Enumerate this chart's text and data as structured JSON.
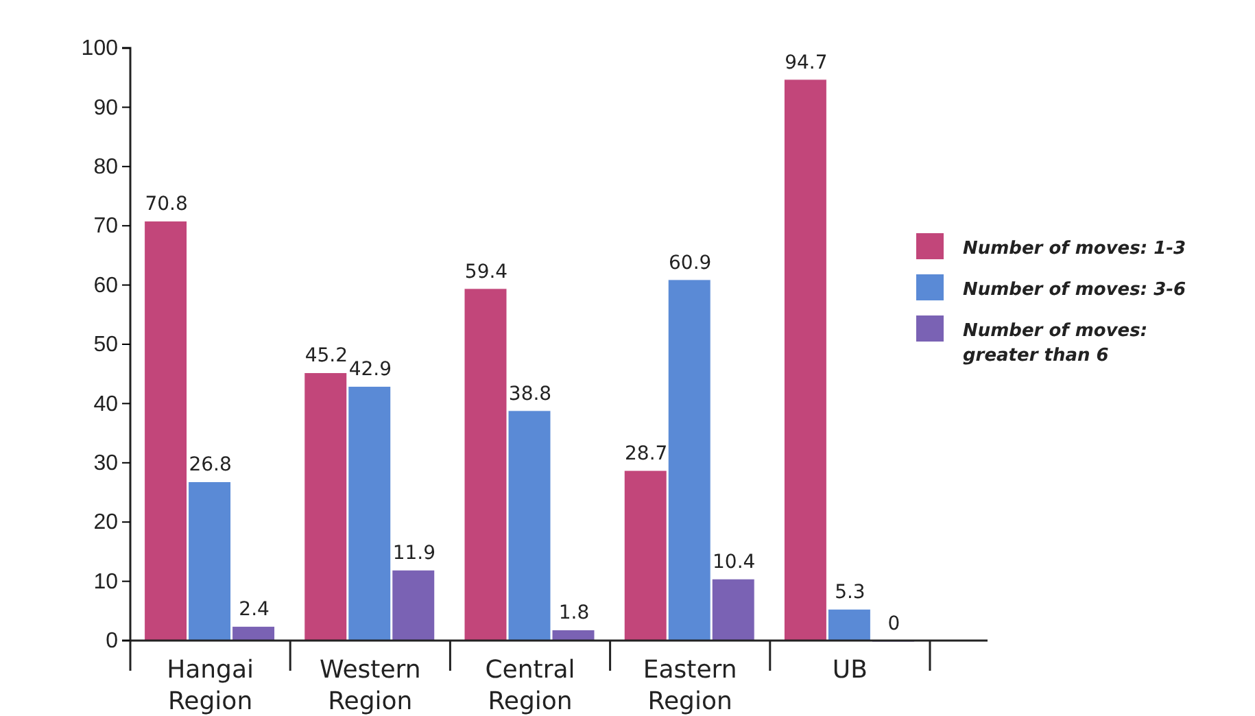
{
  "chart_data": {
    "type": "bar",
    "categories": [
      "Hangai Region",
      "Western Region",
      "Central Region",
      "Eastern Region",
      "UB"
    ],
    "series": [
      {
        "name": "Number of moves: 1-3",
        "color": "#c2467a",
        "values": [
          70.8,
          45.2,
          59.4,
          28.7,
          94.7
        ]
      },
      {
        "name": "Number of moves: 3-6",
        "color": "#5a8ad6",
        "values": [
          26.8,
          42.9,
          38.8,
          60.9,
          5.3
        ]
      },
      {
        "name": "Number of moves: greater than 6",
        "color": "#7a62b4",
        "values": [
          2.4,
          11.9,
          1.8,
          10.4,
          0
        ]
      }
    ],
    "ylim": [
      0,
      100
    ],
    "yticks": [
      0,
      10,
      20,
      30,
      40,
      50,
      60,
      70,
      80,
      90,
      100
    ],
    "data_labels": true,
    "grid": false,
    "legend": "right"
  }
}
